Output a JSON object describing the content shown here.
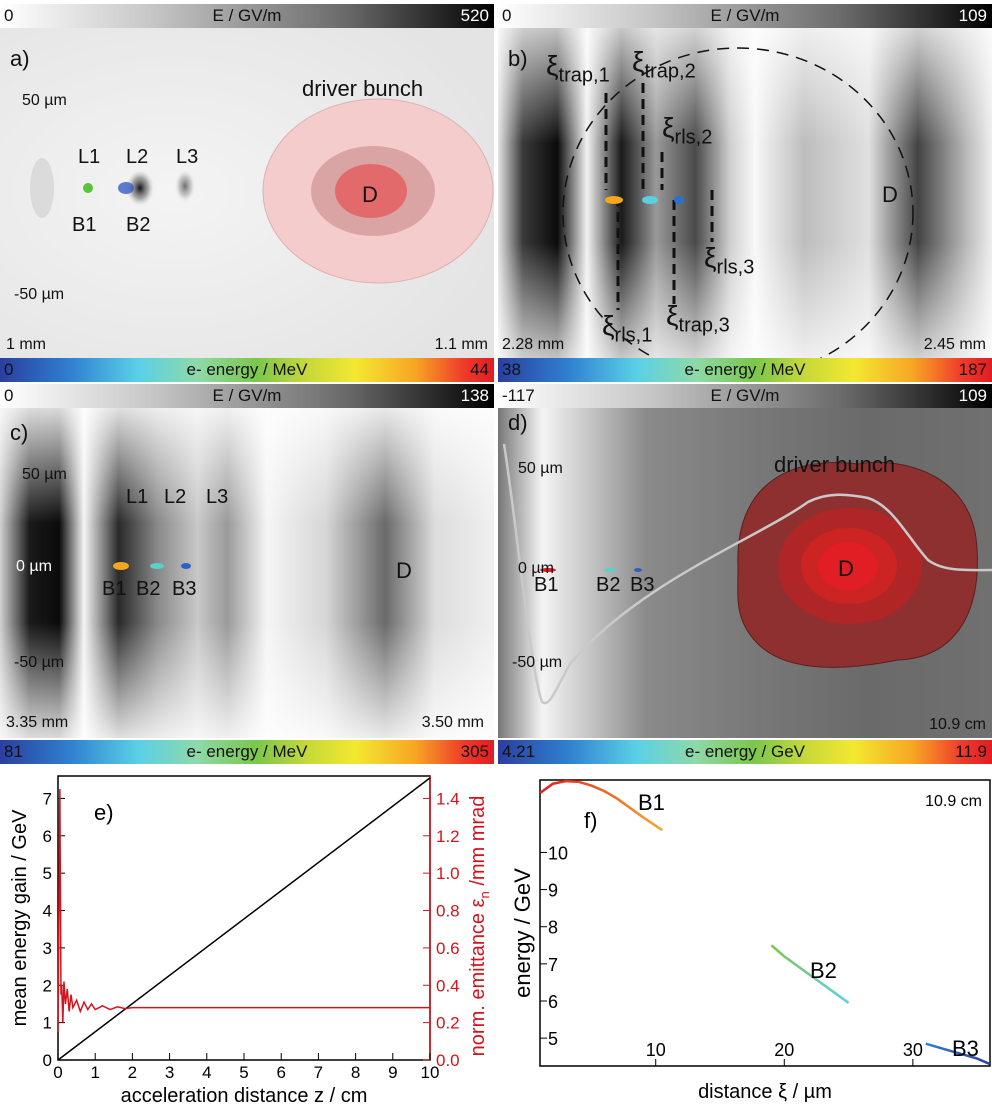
{
  "panels": {
    "a": {
      "label": "a)",
      "field_bar": {
        "min": "0",
        "title": "E / GV/m",
        "max": "520"
      },
      "energy_bar": {
        "min": "0",
        "title": "e- energy / MeV",
        "max": "44"
      },
      "y_top": "50 µm",
      "y_bottom": "-50 µm",
      "x_left": "1 mm",
      "x_right": "1.1 mm",
      "driver": "driver bunch",
      "D": "D",
      "L1": "L1",
      "L2": "L2",
      "L3": "L3",
      "B1": "B1",
      "B2": "B2"
    },
    "b": {
      "label": "b)",
      "field_bar": {
        "min": "0",
        "title": "E / GV/m",
        "max": "109"
      },
      "energy_bar": {
        "min": "38",
        "title": "e- energy / MeV",
        "max": "187"
      },
      "x_left": "2.28 mm",
      "x_right": "2.45 mm",
      "D": "D",
      "xi": "ξ",
      "trap1": "trap,1",
      "trap2": "trap,2",
      "trap3": "trap,3",
      "rls1": "rls,1",
      "rls2": "rls,2",
      "rls3": "rls,3"
    },
    "c": {
      "label": "c)",
      "field_bar": {
        "min": "0",
        "title": "E / GV/m",
        "max": "138"
      },
      "energy_bar": {
        "min": "81",
        "title": "e- energy / MeV",
        "max": "305"
      },
      "y_top": "50 µm",
      "y_mid": "0 µm",
      "y_bottom": "-50 µm",
      "x_left": "3.35 mm",
      "x_right": "3.50 mm",
      "L1": "L1",
      "L2": "L2",
      "L3": "L3",
      "B1": "B1",
      "B2": "B2",
      "B3": "B3",
      "D": "D"
    },
    "d": {
      "label": "d)",
      "field_bar": {
        "min": "-117",
        "title": "E / GV/m",
        "max": "109"
      },
      "energy_bar": {
        "min": "4.21",
        "title": "e- energy / GeV",
        "max": "11.9"
      },
      "y_top": "50 µm",
      "y_mid": "0 µm",
      "y_bottom": "-50 µm",
      "x_right": "10.9 cm",
      "driver": "driver bunch",
      "D": "D",
      "B1": "B1",
      "B2": "B2",
      "B3": "B3"
    }
  },
  "chart_data": [
    {
      "type": "line",
      "panel_label": "e)",
      "xlabel": "acceleration distance z / cm",
      "ylabel": "mean energy gain / GeV",
      "y2label_main": "norm. emittance ε",
      "y2label_sub": "n",
      "y2label_tail": " /mm mrad",
      "xlim": [
        0,
        10
      ],
      "ylim": [
        0,
        7.6
      ],
      "y2lim": [
        0,
        1.52
      ],
      "x_ticks": [
        0,
        1,
        2,
        3,
        4,
        5,
        6,
        7,
        8,
        9,
        10
      ],
      "y_ticks": [
        0,
        1,
        2,
        3,
        4,
        5,
        6,
        7
      ],
      "y2_ticks": [
        "0.0",
        "0.2",
        "0.4",
        "0.6",
        "0.8",
        "1.0",
        "1.2",
        "1.4"
      ],
      "series": [
        {
          "axis": "left",
          "color": "#000000",
          "x": [
            0,
            10
          ],
          "y": [
            0,
            7.55
          ]
        },
        {
          "axis": "right",
          "color": "#d4141c",
          "x": [
            0,
            0.05,
            0.08,
            0.1,
            0.13,
            0.16,
            0.2,
            0.25,
            0.3,
            0.35,
            0.4,
            0.5,
            0.6,
            0.7,
            0.8,
            0.9,
            1.0,
            1.2,
            1.4,
            1.6,
            1.8,
            2.0,
            2.5,
            3,
            4,
            5,
            6,
            7,
            8,
            9,
            10
          ],
          "y": [
            0.15,
            1.45,
            0.35,
            0.4,
            0.2,
            0.42,
            0.3,
            0.38,
            0.26,
            0.35,
            0.28,
            0.32,
            0.26,
            0.31,
            0.27,
            0.3,
            0.27,
            0.29,
            0.27,
            0.285,
            0.275,
            0.28,
            0.28,
            0.28,
            0.28,
            0.28,
            0.28,
            0.28,
            0.28,
            0.28,
            0.28
          ]
        }
      ]
    },
    {
      "type": "scatter",
      "panel_label": "f)",
      "annotation": "10.9 cm",
      "xlabel": "distance ξ / µm",
      "ylabel": "energy / GeV",
      "xlim": [
        1,
        36
      ],
      "ylim": [
        4.25,
        11.95
      ],
      "x_ticks": [
        10,
        20,
        30
      ],
      "y_ticks": [
        5,
        6,
        7,
        8,
        9,
        10
      ],
      "series": [
        {
          "name": "B1",
          "x": [
            1,
            2,
            3,
            4,
            5,
            6,
            7,
            8,
            9,
            10.5
          ],
          "y": [
            11.6,
            11.85,
            11.92,
            11.9,
            11.8,
            11.65,
            11.45,
            11.2,
            10.95,
            10.6
          ]
        },
        {
          "name": "B2",
          "x": [
            19,
            20,
            21,
            22,
            23,
            24,
            25
          ],
          "y": [
            7.5,
            7.2,
            6.95,
            6.7,
            6.45,
            6.2,
            5.95
          ]
        },
        {
          "name": "B3",
          "x": [
            31,
            32,
            33,
            34,
            35,
            36
          ],
          "y": [
            4.85,
            4.75,
            4.65,
            4.55,
            4.45,
            4.3
          ]
        }
      ]
    }
  ]
}
